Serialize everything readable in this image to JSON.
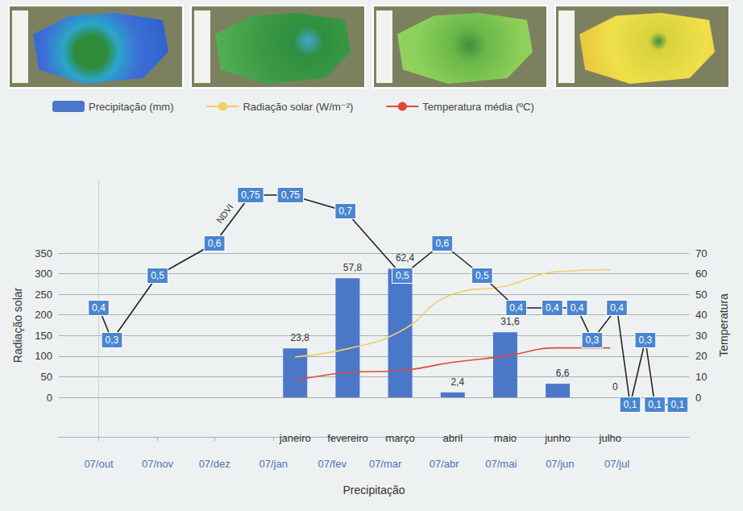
{
  "chart_data": [
    {
      "type": "line",
      "xlabel": "Precipitação",
      "x": [
        0,
        7,
        31,
        61,
        80,
        101,
        130,
        160,
        181,
        202,
        220,
        239,
        252,
        260,
        273,
        280,
        288,
        293,
        305
      ],
      "xlim": [
        -21,
        311
      ],
      "xticks": [
        {
          "value": 0,
          "label": "07/out"
        },
        {
          "value": 31,
          "label": "07/nov"
        },
        {
          "value": 61,
          "label": "07/dez"
        },
        {
          "value": 92,
          "label": "07/jan"
        },
        {
          "value": 123,
          "label": "07/fev"
        },
        {
          "value": 151,
          "label": "07/mar"
        },
        {
          "value": 182,
          "label": "07/abr"
        },
        {
          "value": 212,
          "label": "07/mai"
        },
        {
          "value": 243,
          "label": "07/jun"
        },
        {
          "value": 273,
          "label": "07/jul"
        }
      ],
      "ylim": [
        0,
        0.8
      ],
      "tick_labels": "x",
      "data_labels": true,
      "series": [
        {
          "name": "NDVI",
          "color": "#222222",
          "values": [
            0.4,
            0.3,
            0.5,
            0.6,
            0.75,
            0.75,
            0.7,
            0.5,
            0.6,
            0.5,
            0.4,
            0.4,
            0.4,
            0.3,
            0.4,
            0.1,
            0.3,
            0.1,
            0.1
          ],
          "value_labels": [
            "0,4",
            "0,3",
            "0,5",
            "0,6",
            "0,75",
            "0,75",
            "0,7",
            "0,5",
            "0,6",
            "0,5",
            "0,4",
            "0,4",
            "0,4",
            "0,3",
            "0,4",
            "0,1",
            "0,3",
            "0,1",
            "0,1"
          ]
        }
      ]
    },
    {
      "type": "bar",
      "categories": [
        null,
        null,
        null,
        null,
        "janeiro",
        "fevereiro",
        "março",
        "abril",
        "maio",
        "junho",
        "julho",
        null
      ],
      "ylabel": "Radiação solar",
      "y2label": "Temperatura",
      "ylim": [
        0,
        350
      ],
      "yticks": [
        0,
        50,
        100,
        150,
        200,
        250,
        300,
        350
      ],
      "y2lim": [
        0,
        70
      ],
      "y2ticks": [
        0,
        10,
        20,
        30,
        40,
        50,
        60,
        70
      ],
      "grid": true,
      "legend": "top",
      "data_labels": true,
      "series": [
        {
          "name": "Precipitação (mm)",
          "type": "bar",
          "color": "#4a77c8",
          "axis": "y2",
          "values": [
            null,
            null,
            null,
            null,
            23.8,
            57.8,
            62.4,
            2.4,
            31.6,
            6.6,
            0,
            null
          ],
          "value_labels": [
            null,
            null,
            null,
            null,
            "23,8",
            "57,8",
            "62,4",
            "2,4",
            "31,6",
            "6,6",
            "0",
            null
          ]
        },
        {
          "name": "Radiação solar (W/m⁻²)",
          "type": "line",
          "color": "#f0cf68",
          "values": [
            null,
            null,
            null,
            null,
            98,
            118,
            160,
            250,
            270,
            305,
            310,
            null
          ]
        },
        {
          "name": "Temperatura média (ºC)",
          "type": "line",
          "color": "#e2483a",
          "axis": "y2",
          "values": [
            null,
            null,
            null,
            null,
            8,
            12,
            13,
            17,
            20,
            24,
            24,
            null
          ]
        }
      ]
    }
  ]
}
